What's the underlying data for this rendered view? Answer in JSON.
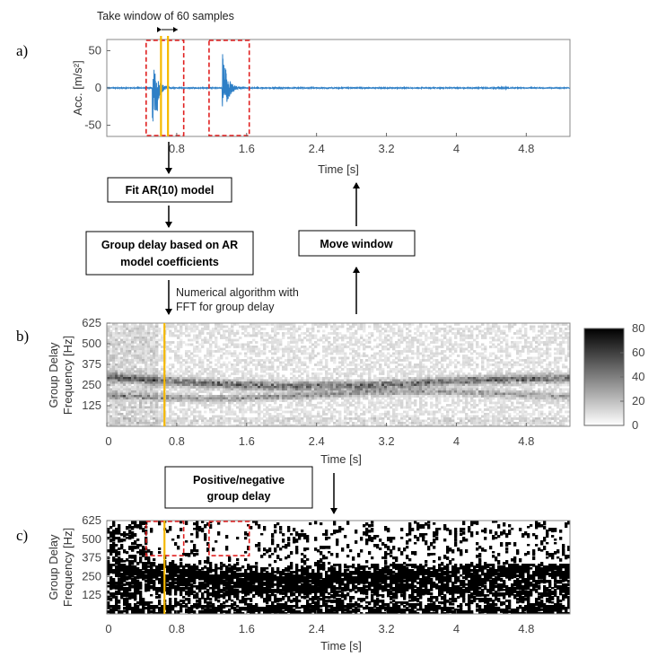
{
  "panel_labels": [
    "a)",
    "b)",
    "c)"
  ],
  "annotation_top": "Take window of 60 samples",
  "annotation_fft": [
    "Numerical algorithm with",
    "FFT for group delay"
  ],
  "steps": {
    "fit": "Fit AR(10) model",
    "group_delay": [
      "Group delay based on AR",
      "model coefficients"
    ],
    "move": "Move window",
    "posneg": [
      "Positive/negative",
      "group delay"
    ]
  },
  "colors": {
    "signal": "#2e7fc6",
    "window": "#f5b800",
    "highlight": "#e02020"
  },
  "chart_data": [
    {
      "type": "line",
      "xlabel": "Time [s]",
      "ylabel": "Acc. [m/s²]",
      "ylim": [
        -65,
        65
      ],
      "xlim": [
        0,
        5.3
      ],
      "yticks": [
        50,
        0,
        -50
      ],
      "xticks": [
        0.8,
        1.6,
        2.4,
        3.2,
        4,
        4.8
      ],
      "ytick_labels": [
        "50",
        "0",
        "-50"
      ],
      "xtick_labels": [
        "0.8",
        "1.6",
        "2.4",
        "3.2",
        "4",
        "4.8"
      ],
      "bursts": [
        {
          "t": 0.52,
          "amp": 60
        },
        {
          "t": 1.32,
          "amp": 62
        }
      ],
      "window_x": [
        0.62,
        0.7
      ],
      "highlight_ranges": [
        [
          0.45,
          0.88
        ],
        [
          1.17,
          1.63
        ]
      ]
    },
    {
      "type": "heatmap",
      "xlabel": "Time [s]",
      "ylabel": [
        "Group Delay",
        "Frequency [Hz]"
      ],
      "xlim": [
        0,
        5.3
      ],
      "ylim": [
        0,
        625
      ],
      "xticks": [
        0,
        0.8,
        1.6,
        2.4,
        3.2,
        4,
        4.8
      ],
      "yticks": [
        125,
        250,
        375,
        500,
        625
      ],
      "xtick_labels": [
        "0",
        "0.8",
        "1.6",
        "2.4",
        "3.2",
        "4",
        "4.8"
      ],
      "ytick_labels": [
        "125",
        "250",
        "375",
        "500",
        "625"
      ],
      "colorbar": {
        "range": [
          0,
          80
        ],
        "ticks": [
          0,
          20,
          40,
          60,
          80
        ],
        "labels": [
          "0",
          "20",
          "40",
          "60",
          "80"
        ]
      },
      "window_x": 0.66
    },
    {
      "type": "heatmap",
      "xlabel": "Time [s]",
      "ylabel": [
        "Group Delay",
        "Frequency [Hz]"
      ],
      "xlim": [
        0,
        5.3
      ],
      "ylim": [
        0,
        625
      ],
      "xticks": [
        0,
        0.8,
        1.6,
        2.4,
        3.2,
        4,
        4.8
      ],
      "yticks": [
        125,
        250,
        375,
        500,
        625
      ],
      "xtick_labels": [
        "0",
        "0.8",
        "1.6",
        "2.4",
        "3.2",
        "4",
        "4.8"
      ],
      "ytick_labels": [
        "125",
        "250",
        "375",
        "500",
        "625"
      ],
      "window_x": 0.66,
      "highlight_ranges": [
        {
          "x": [
            0.45,
            0.88
          ],
          "y": [
            390,
            625
          ]
        },
        {
          "x": [
            1.17,
            1.63
          ],
          "y": [
            390,
            625
          ]
        }
      ]
    }
  ]
}
